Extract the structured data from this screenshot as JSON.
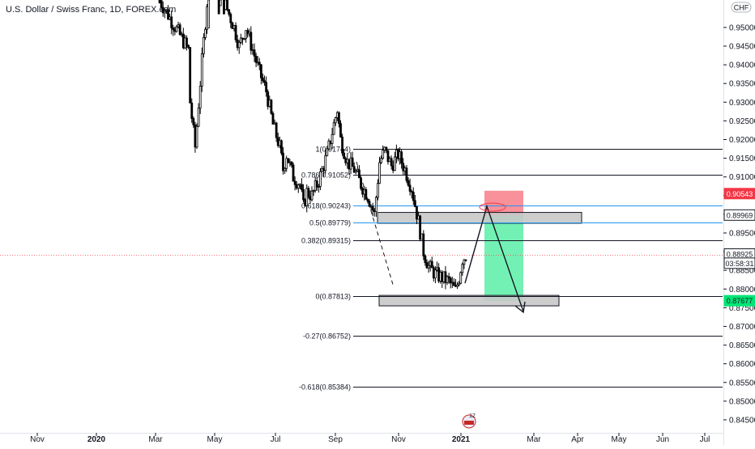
{
  "header": {
    "title": "U.S. Dollar / Swiss Franc, 1D, FOREX.com",
    "currency": "CHF"
  },
  "chart_data": {
    "type": "candlestick",
    "title": "U.S. Dollar / Swiss Franc, 1D, FOREX.com",
    "y_ticks": [
      "0.95000",
      "0.94500",
      "0.94000",
      "0.93500",
      "0.93000",
      "0.92500",
      "0.92000",
      "0.91500",
      "0.91000",
      "0.90500",
      "0.90000",
      "0.89500",
      "0.89000",
      "0.88500",
      "0.88000",
      "0.87500",
      "0.87000",
      "0.86500",
      "0.86000",
      "0.85500",
      "0.85000",
      "0.84500"
    ],
    "ylim": [
      0.8425,
      0.9555
    ],
    "x_ticks": [
      "Nov",
      "2020",
      "Mar",
      "May",
      "Jul",
      "Sep",
      "Nov",
      "2021",
      "Mar",
      "Apr",
      "May",
      "Jun",
      "Jul"
    ],
    "price_series": [
      [
        0,
        0.958
      ],
      [
        18,
        0.944
      ],
      [
        19,
        0.93
      ],
      [
        22,
        0.918
      ],
      [
        26,
        0.941
      ],
      [
        30,
        0.962
      ],
      [
        40,
        0.956
      ],
      [
        45,
        0.95
      ],
      [
        48,
        0.945
      ],
      [
        52,
        0.95
      ],
      [
        56,
        0.944
      ],
      [
        60,
        0.938
      ],
      [
        64,
        0.933
      ],
      [
        68,
        0.924
      ],
      [
        72,
        0.918
      ],
      [
        74,
        0.912
      ],
      [
        76,
        0.916
      ],
      [
        80,
        0.91
      ],
      [
        84,
        0.908
      ],
      [
        86,
        0.902
      ],
      [
        88,
        0.906
      ],
      [
        91,
        0.905
      ],
      [
        95,
        0.909
      ],
      [
        100,
        0.916
      ],
      [
        104,
        0.924
      ],
      [
        106,
        0.928
      ],
      [
        108,
        0.92
      ],
      [
        112,
        0.914
      ],
      [
        116,
        0.912
      ],
      [
        120,
        0.908
      ],
      [
        124,
        0.905
      ],
      [
        128,
        0.9
      ],
      [
        131,
        0.914
      ],
      [
        134,
        0.917
      ],
      [
        138,
        0.913
      ],
      [
        142,
        0.916
      ],
      [
        146,
        0.912
      ],
      [
        150,
        0.907
      ],
      [
        154,
        0.898
      ],
      [
        157,
        0.89
      ],
      [
        160,
        0.886
      ],
      [
        164,
        0.884
      ],
      [
        168,
        0.883
      ],
      [
        172,
        0.882
      ],
      [
        176,
        0.8795
      ],
      [
        178,
        0.883
      ],
      [
        180,
        0.888
      ],
      [
        182,
        0.889
      ]
    ],
    "fib_levels": [
      {
        "label": "1(0.91744)",
        "value": 0.91744,
        "color": "#131722"
      },
      {
        "label": "0.786(0.91052)",
        "value": 0.91052,
        "color": "#131722"
      },
      {
        "label": "0.618(0.90243)",
        "value": 0.90243,
        "color": "#2196f3"
      },
      {
        "label": "0.5(0.89779)",
        "value": 0.89779,
        "color": "#2196f3"
      },
      {
        "label": "0.382(0.89315)",
        "value": 0.89315,
        "color": "#131722"
      },
      {
        "label": "0(0.87813)",
        "value": 0.87813,
        "color": "#131722"
      },
      {
        "label": "-0.27(0.86752)",
        "value": 0.86752,
        "color": "#131722"
      },
      {
        "label": "-0.618(0.85384)",
        "value": 0.85384,
        "color": "#131722"
      }
    ],
    "price_badges": [
      {
        "label": "0.90543",
        "value": 0.90543,
        "bg": "#f23645",
        "fg": "#ffffff"
      },
      {
        "label": "0.89969",
        "value": 0.89969,
        "bg": "#ffffff",
        "fg": "#131722",
        "border": "#131722"
      },
      {
        "label": "0.88925",
        "value": 0.88925,
        "bg": "#ffffff",
        "fg": "#131722",
        "border": "#131722"
      },
      {
        "label": "03:58:31",
        "value": 0.8868,
        "bg": "#ffffff",
        "fg": "#131722",
        "border": "#131722"
      },
      {
        "label": "0.87677",
        "value": 0.87677,
        "bg": "#00e676",
        "fg": "#131722"
      }
    ],
    "current_price": 0.88925,
    "zones": [
      {
        "name": "resistance-zone",
        "y_top": 0.9005,
        "y_bottom": 0.8976
      },
      {
        "name": "support-zone",
        "y_top": 0.8783,
        "y_bottom": 0.8755
      }
    ],
    "stop_zone": {
      "y_top": 0.9063,
      "y_bottom": 0.89969,
      "color": "#f23645"
    },
    "target_zone": {
      "y_top": 0.89969,
      "y_bottom": 0.87677,
      "color": "#00e676"
    },
    "bottom_badge": "12",
    "grid": false
  },
  "colors": {
    "background": "#ffffff",
    "axis": "#e0e3eb",
    "candle": "#000000",
    "blue": "#2196f3",
    "red": "#f23645",
    "green": "#00e676",
    "zone_fill": "#c8c8c8",
    "crosshair": "#f23645"
  }
}
